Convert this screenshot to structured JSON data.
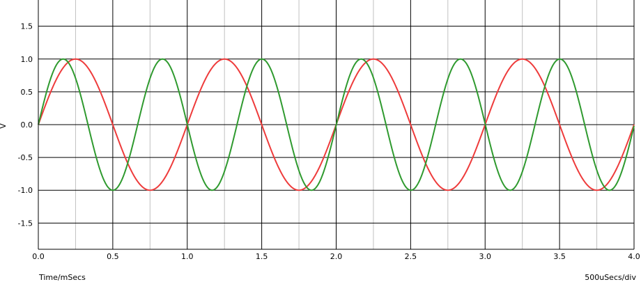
{
  "chart_data": {
    "type": "line",
    "xlabel": "Time/mSecs",
    "ylabel": "V",
    "scale_label": "500uSecs/div",
    "xlim": [
      0,
      4
    ],
    "ylim": [
      -1.9,
      1.9
    ],
    "x_ticks": [
      "0.0",
      "0.5",
      "1.0",
      "1.5",
      "2.0",
      "2.5",
      "3.0",
      "3.5",
      "4.0"
    ],
    "y_ticks": [
      "1.5",
      "1.0",
      "0.5",
      "0.0",
      "-0.5",
      "-1.0",
      "-1.5"
    ],
    "y_tick_values": [
      1.5,
      1.0,
      0.5,
      0.0,
      -0.5,
      -1.0,
      -1.5
    ],
    "grid": true,
    "series": [
      {
        "color": "#ee3b3b",
        "x": [
          0,
          0.125,
          0.25,
          0.375,
          0.5,
          0.625,
          0.75,
          0.875,
          1.0,
          1.125,
          1.25,
          1.375,
          1.5,
          1.625,
          1.75,
          1.875,
          2.0,
          2.125,
          2.25,
          2.375,
          2.5,
          2.625,
          2.75,
          2.875,
          3.0,
          3.125,
          3.25,
          3.375,
          3.5,
          3.625,
          3.75,
          3.875,
          4.0
        ],
        "y": [
          0,
          0.71,
          1,
          0.71,
          0,
          -0.71,
          -1,
          -0.71,
          0,
          0.71,
          1,
          0.71,
          0,
          -0.71,
          -1,
          -0.71,
          0,
          0.71,
          1,
          0.71,
          0,
          -0.71,
          -1,
          -0.71,
          0,
          0.71,
          1,
          0.71,
          0,
          -0.71,
          -1,
          -0.71,
          0
        ]
      },
      {
        "color": "#2f9a2f",
        "x": [
          0,
          0.083,
          0.167,
          0.25,
          0.333,
          0.417,
          0.5,
          0.583,
          0.667,
          0.75,
          0.833,
          0.917,
          1.0,
          1.083,
          1.167,
          1.25,
          1.333,
          1.417,
          1.5,
          1.583,
          1.667,
          1.75,
          1.833,
          1.917,
          2.0,
          2.083,
          2.167,
          2.25,
          2.333,
          2.417,
          2.5,
          2.583,
          2.667,
          2.75,
          2.833,
          2.917,
          3.0,
          3.083,
          3.167,
          3.25,
          3.333,
          3.417,
          3.5,
          3.583,
          3.667,
          3.75,
          3.833,
          3.917,
          4.0
        ],
        "y": [
          0,
          0.71,
          1,
          0.71,
          0,
          -0.71,
          -1,
          -0.71,
          0,
          0.71,
          1,
          0.71,
          0,
          -0.71,
          -1,
          -0.71,
          0,
          0.71,
          1,
          0.71,
          0,
          -0.71,
          -1,
          -0.71,
          0,
          0.71,
          1,
          0.71,
          0,
          -0.71,
          -1,
          -0.71,
          0,
          0.71,
          1,
          0.71,
          0,
          -0.71,
          -1,
          -0.71,
          0,
          0.71,
          1,
          0.71,
          0,
          -0.71,
          -1,
          -0.71,
          0
        ]
      }
    ]
  }
}
